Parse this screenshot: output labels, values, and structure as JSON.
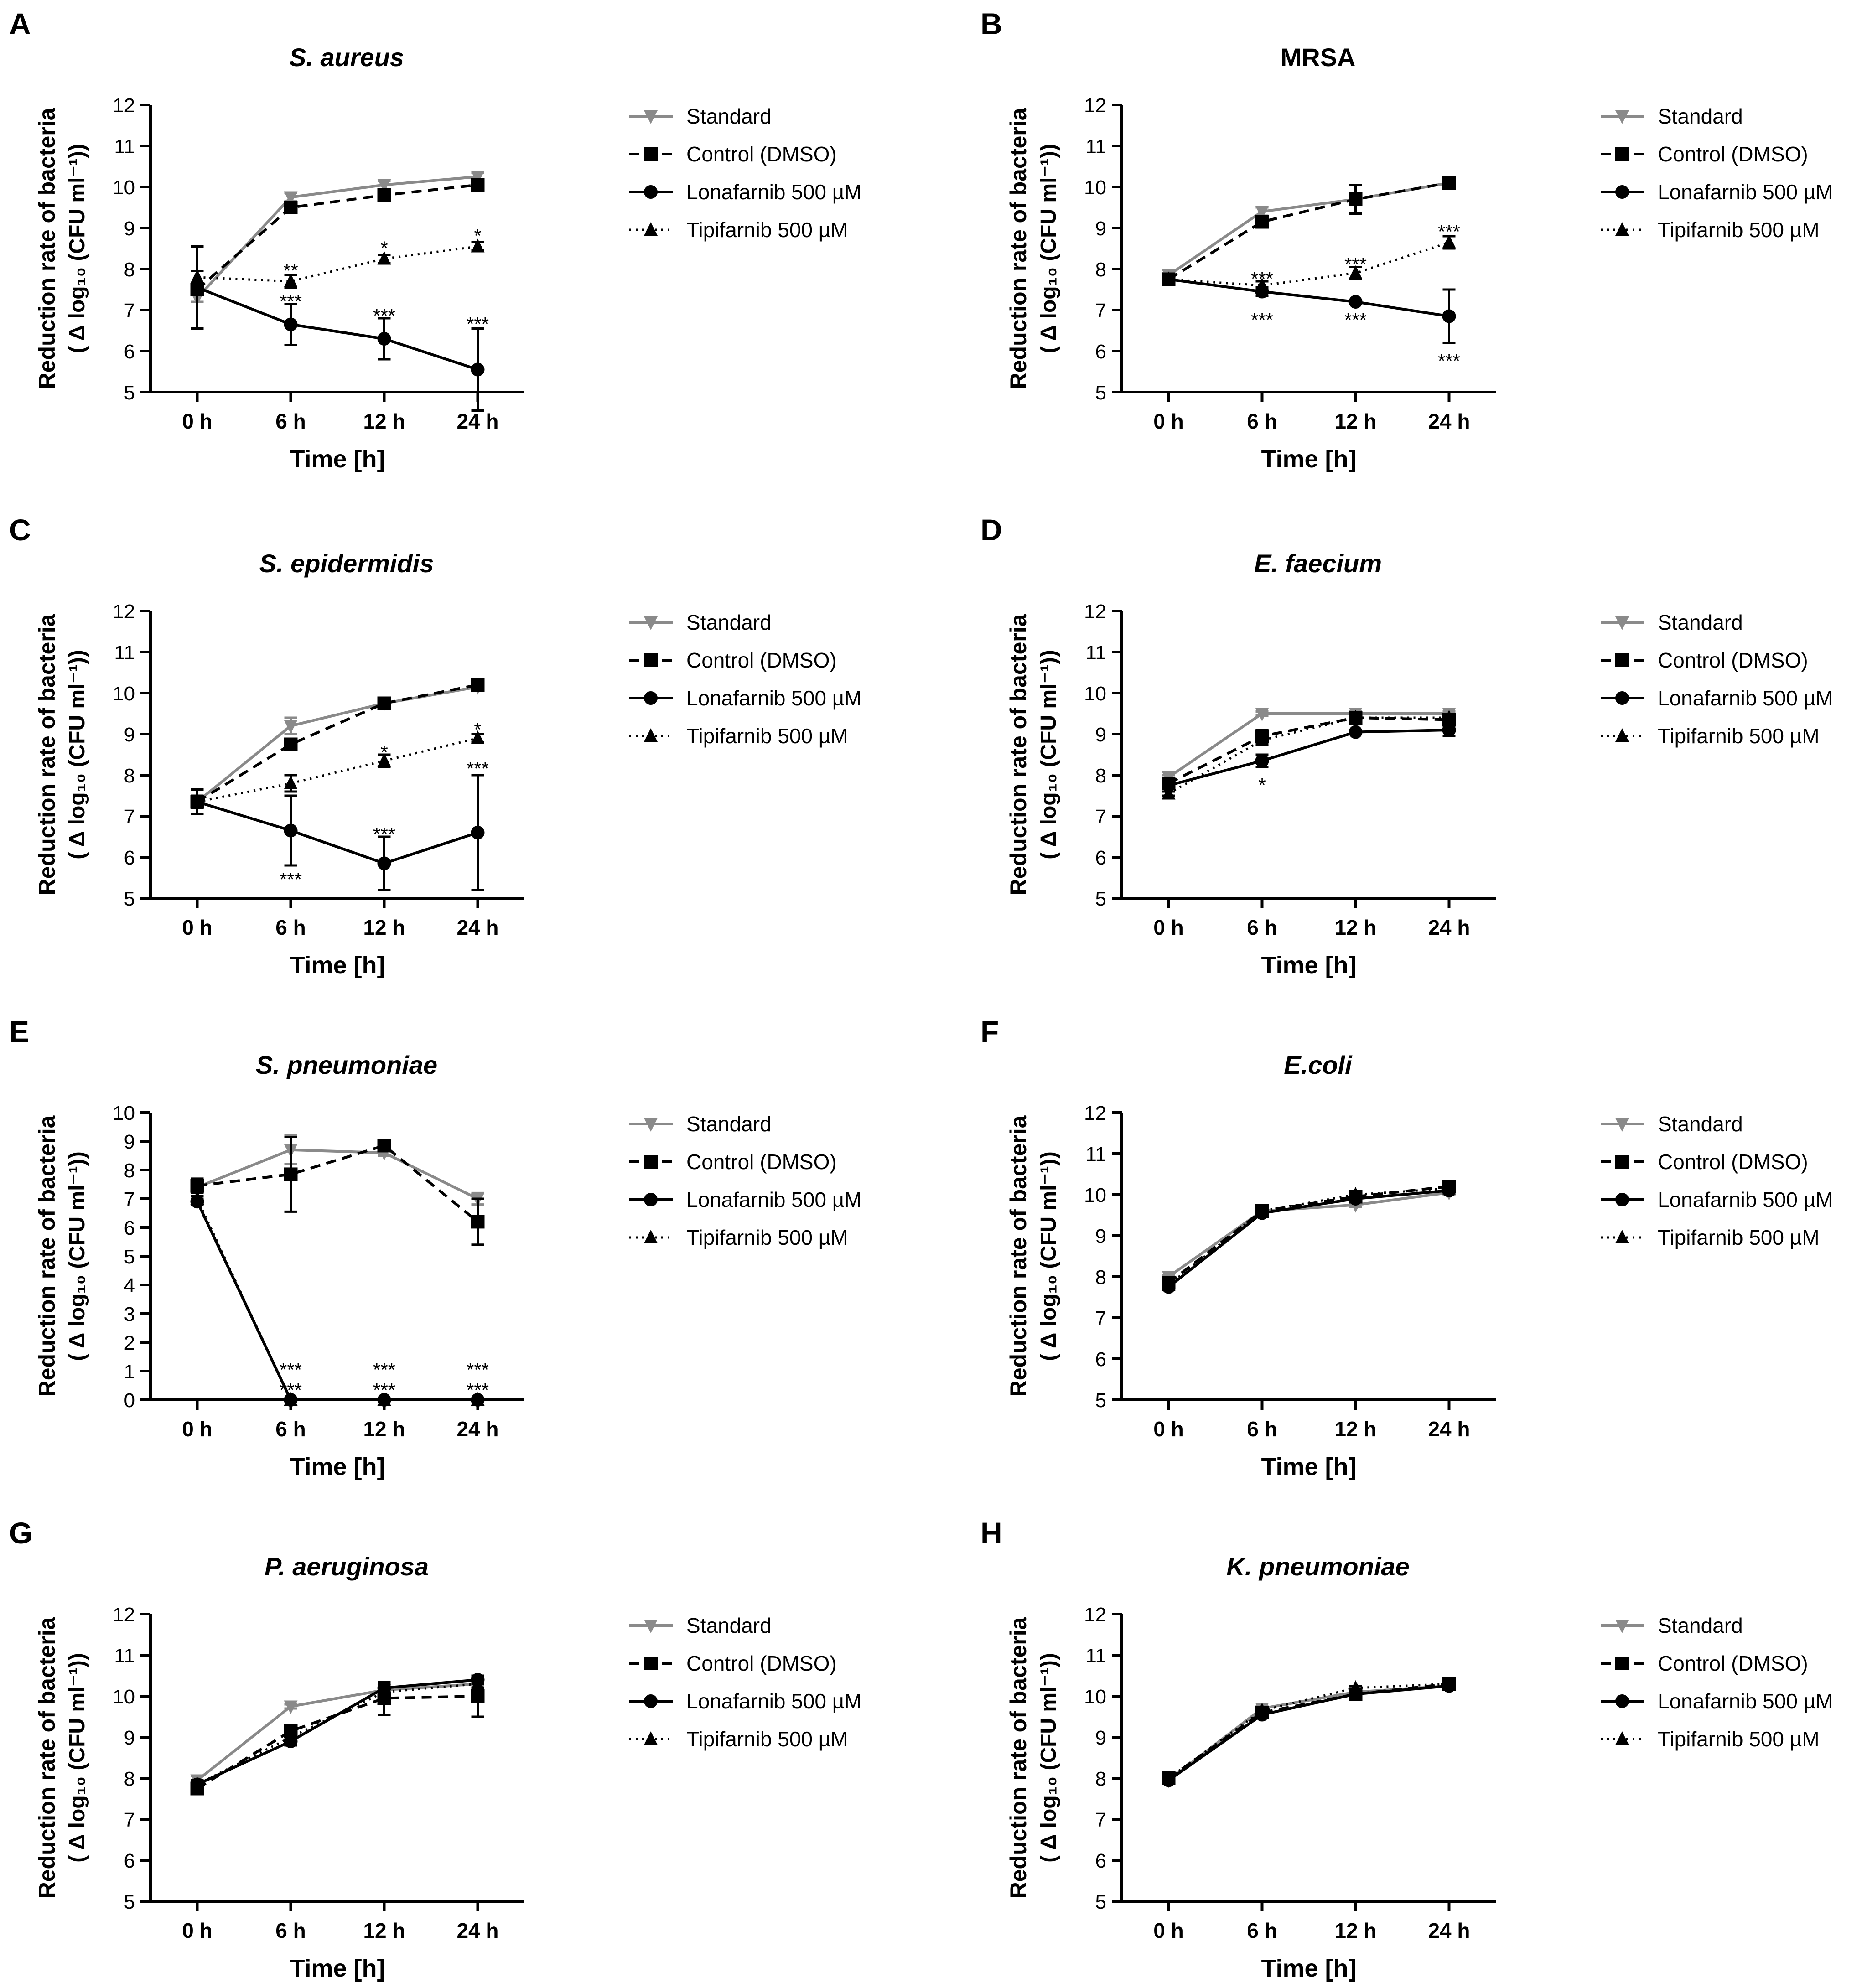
{
  "figure": {
    "x_axis_label": "Time [h]",
    "y_axis_label_line1": "Reduction rate of bacteria",
    "y_axis_label_line2": "( Δ log₁₀ (CFU ml⁻¹))",
    "legend": [
      "Standard",
      "Control (DMSO)",
      "Lonafarnib 500 µM",
      "Tipifarnib 500 µM"
    ],
    "colors": {
      "standard": "#8a8a8a",
      "others": "#000000"
    }
  },
  "chart_data": [
    {
      "panel": "A",
      "title": "S. aureus",
      "type": "line",
      "categories": [
        "0 h",
        "6 h",
        "12 h",
        "24 h"
      ],
      "ylim": [
        5,
        12
      ],
      "series": [
        {
          "name": "Standard",
          "values": [
            7.3,
            9.75,
            10.05,
            10.25
          ],
          "err": [
            0.1,
            0.1,
            0.1,
            0.1
          ]
        },
        {
          "name": "Control (DMSO)",
          "values": [
            7.5,
            9.5,
            9.8,
            10.05
          ],
          "err": [
            0.1,
            0.1,
            0.1,
            0.1
          ]
        },
        {
          "name": "Lonafarnib 500 µM",
          "values": [
            7.55,
            6.65,
            6.3,
            5.55
          ],
          "err": [
            1.0,
            0.5,
            0.5,
            1.0
          ]
        },
        {
          "name": "Tipifarnib 500 µM",
          "values": [
            7.8,
            7.7,
            8.25,
            8.55
          ],
          "err": [
            0.15,
            0.15,
            0.1,
            0.1
          ]
        }
      ],
      "annotations": [
        {
          "x": "6 h",
          "y": 8.0,
          "text": "**"
        },
        {
          "x": "12 h",
          "y": 8.55,
          "text": "*"
        },
        {
          "x": "24 h",
          "y": 8.85,
          "text": "*"
        },
        {
          "x": "6 h",
          "y": 7.25,
          "text": "***"
        },
        {
          "x": "12 h",
          "y": 6.9,
          "text": "***"
        },
        {
          "x": "24 h",
          "y": 6.7,
          "text": "***"
        }
      ]
    },
    {
      "panel": "B",
      "title": "MRSA",
      "type": "line",
      "categories": [
        "0 h",
        "6 h",
        "12 h",
        "24 h"
      ],
      "ylim": [
        5,
        12
      ],
      "series": [
        {
          "name": "Standard",
          "values": [
            7.85,
            9.4,
            9.7,
            10.1
          ],
          "err": [
            0.05,
            0.1,
            0.1,
            0.05
          ]
        },
        {
          "name": "Control (DMSO)",
          "values": [
            7.75,
            9.15,
            9.7,
            10.1
          ],
          "err": [
            0.05,
            0.1,
            0.35,
            0.05
          ]
        },
        {
          "name": "Lonafarnib 500 µM",
          "values": [
            7.75,
            7.45,
            7.2,
            6.85
          ],
          "err": [
            0.05,
            0.1,
            0.05,
            0.65
          ]
        },
        {
          "name": "Tipifarnib 500 µM",
          "values": [
            7.75,
            7.6,
            7.9,
            8.65
          ],
          "err": [
            0.05,
            0.1,
            0.15,
            0.15
          ]
        }
      ],
      "annotations": [
        {
          "x": "6 h",
          "y": 7.8,
          "text": "***"
        },
        {
          "x": "12 h",
          "y": 8.15,
          "text": "***"
        },
        {
          "x": "24 h",
          "y": 8.95,
          "text": "***"
        },
        {
          "x": "6 h",
          "y": 6.8,
          "text": "***"
        },
        {
          "x": "12 h",
          "y": 6.8,
          "text": "***"
        },
        {
          "x": "24 h",
          "y": 5.8,
          "text": "***"
        }
      ]
    },
    {
      "panel": "C",
      "title": "S. epidermidis",
      "type": "line",
      "categories": [
        "0 h",
        "6 h",
        "12 h",
        "24 h"
      ],
      "ylim": [
        5,
        12
      ],
      "series": [
        {
          "name": "Standard",
          "values": [
            7.35,
            9.2,
            9.75,
            10.15
          ],
          "err": [
            0.15,
            0.2,
            0.05,
            0.05
          ]
        },
        {
          "name": "Control (DMSO)",
          "values": [
            7.35,
            8.75,
            9.75,
            10.2
          ],
          "err": [
            0.15,
            0.1,
            0.05,
            0.05
          ]
        },
        {
          "name": "Lonafarnib 500 µM",
          "values": [
            7.35,
            6.65,
            5.85,
            6.6
          ],
          "err": [
            0.3,
            0.85,
            0.65,
            1.4
          ]
        },
        {
          "name": "Tipifarnib 500 µM",
          "values": [
            7.35,
            7.8,
            8.35,
            8.9
          ],
          "err": [
            0.15,
            0.2,
            0.15,
            0.1
          ]
        }
      ],
      "annotations": [
        {
          "x": "12 h",
          "y": 8.6,
          "text": "*"
        },
        {
          "x": "24 h",
          "y": 9.15,
          "text": "*"
        },
        {
          "x": "24 h",
          "y": 8.2,
          "text": "***"
        },
        {
          "x": "12 h",
          "y": 6.6,
          "text": "***"
        },
        {
          "x": "6 h",
          "y": 5.5,
          "text": "***"
        }
      ]
    },
    {
      "panel": "D",
      "title": "E. faecium",
      "type": "line",
      "categories": [
        "0 h",
        "6 h",
        "12 h",
        "24 h"
      ],
      "ylim": [
        5,
        12
      ],
      "series": [
        {
          "name": "Standard",
          "values": [
            7.95,
            9.5,
            9.5,
            9.5
          ],
          "err": [
            0.05,
            0.05,
            0.05,
            0.05
          ]
        },
        {
          "name": "Control (DMSO)",
          "values": [
            7.8,
            8.95,
            9.4,
            9.35
          ],
          "err": [
            0.05,
            0.15,
            0.05,
            0.1
          ]
        },
        {
          "name": "Lonafarnib 500 µM",
          "values": [
            7.75,
            8.35,
            9.05,
            9.1
          ],
          "err": [
            0.05,
            0.15,
            0.05,
            0.15
          ]
        },
        {
          "name": "Tipifarnib 500 µM",
          "values": [
            7.55,
            8.85,
            9.4,
            9.4
          ],
          "err": [
            0.05,
            0.1,
            0.05,
            0.05
          ]
        }
      ],
      "annotations": [
        {
          "x": "6 h",
          "y": 7.8,
          "text": "*"
        }
      ]
    },
    {
      "panel": "E",
      "title": "S. pneumoniae",
      "type": "line",
      "categories": [
        "0 h",
        "6 h",
        "12 h",
        "24 h"
      ],
      "ylim": [
        0,
        10
      ],
      "series": [
        {
          "name": "Standard",
          "values": [
            7.4,
            8.7,
            8.6,
            7.0
          ],
          "err": [
            0.2,
            0.5,
            0.1,
            0.2
          ]
        },
        {
          "name": "Control (DMSO)",
          "values": [
            7.45,
            7.85,
            8.85,
            6.2
          ],
          "err": [
            0.25,
            1.3,
            0.1,
            0.8
          ]
        },
        {
          "name": "Lonafarnib 500 µM",
          "values": [
            6.9,
            0,
            0,
            0
          ],
          "err": [
            0.1,
            0,
            0,
            0
          ]
        },
        {
          "name": "Tipifarnib 500 µM",
          "values": [
            7.0,
            0,
            0,
            0
          ],
          "err": [
            0.1,
            0,
            0,
            0
          ]
        }
      ],
      "annotations": [
        {
          "x": "6 h",
          "y": 1.1,
          "text": "***"
        },
        {
          "x": "12 h",
          "y": 1.1,
          "text": "***"
        },
        {
          "x": "24 h",
          "y": 1.1,
          "text": "***"
        },
        {
          "x": "6 h",
          "y": 0.4,
          "text": "***"
        },
        {
          "x": "12 h",
          "y": 0.4,
          "text": "***"
        },
        {
          "x": "24 h",
          "y": 0.4,
          "text": "***"
        }
      ]
    },
    {
      "panel": "F",
      "title": "E.coli",
      "type": "line",
      "categories": [
        "0 h",
        "6 h",
        "12 h",
        "24 h"
      ],
      "ylim": [
        5,
        12
      ],
      "series": [
        {
          "name": "Standard",
          "values": [
            8.0,
            9.6,
            9.75,
            10.05
          ],
          "err": [
            0.05,
            0.05,
            0.05,
            0.05
          ]
        },
        {
          "name": "Control (DMSO)",
          "values": [
            7.85,
            9.6,
            9.95,
            10.2
          ],
          "err": [
            0.05,
            0.05,
            0.05,
            0.05
          ]
        },
        {
          "name": "Lonafarnib 500 µM",
          "values": [
            7.75,
            9.55,
            9.9,
            10.1
          ],
          "err": [
            0.05,
            0.05,
            0.05,
            0.05
          ]
        },
        {
          "name": "Tipifarnib 500 µM",
          "values": [
            7.8,
            9.6,
            10.0,
            10.15
          ],
          "err": [
            0.05,
            0.05,
            0.05,
            0.05
          ]
        }
      ],
      "annotations": []
    },
    {
      "panel": "G",
      "title": "P. aeruginosa",
      "type": "line",
      "categories": [
        "0 h",
        "6 h",
        "12 h",
        "24 h"
      ],
      "ylim": [
        5,
        12
      ],
      "series": [
        {
          "name": "Standard",
          "values": [
            7.95,
            9.75,
            10.15,
            10.3
          ],
          "err": [
            0.1,
            0.05,
            0.1,
            0.05
          ]
        },
        {
          "name": "Control (DMSO)",
          "values": [
            7.75,
            9.15,
            9.95,
            10.0
          ],
          "err": [
            0.1,
            0.1,
            0.4,
            0.5
          ]
        },
        {
          "name": "Lonafarnib 500 µM",
          "values": [
            7.85,
            8.9,
            10.2,
            10.4
          ],
          "err": [
            0.1,
            0.1,
            0.1,
            0.1
          ]
        },
        {
          "name": "Tipifarnib 500 µM",
          "values": [
            7.85,
            9.0,
            10.1,
            10.3
          ],
          "err": [
            0.1,
            0.1,
            0.1,
            0.1
          ]
        }
      ],
      "annotations": []
    },
    {
      "panel": "H",
      "title": "K. pneumoniae",
      "type": "line",
      "categories": [
        "0 h",
        "6 h",
        "12 h",
        "24 h"
      ],
      "ylim": [
        5,
        12
      ],
      "series": [
        {
          "name": "Standard",
          "values": [
            7.95,
            9.7,
            10.1,
            10.25
          ],
          "err": [
            0.05,
            0.05,
            0.05,
            0.05
          ]
        },
        {
          "name": "Control (DMSO)",
          "values": [
            8.0,
            9.6,
            10.05,
            10.3
          ],
          "err": [
            0.05,
            0.05,
            0.05,
            0.05
          ]
        },
        {
          "name": "Lonafarnib 500 µM",
          "values": [
            7.95,
            9.55,
            10.05,
            10.25
          ],
          "err": [
            0.05,
            0.05,
            0.05,
            0.05
          ]
        },
        {
          "name": "Tipifarnib 500 µM",
          "values": [
            8.0,
            9.65,
            10.2,
            10.3
          ],
          "err": [
            0.05,
            0.05,
            0.05,
            0.05
          ]
        }
      ],
      "annotations": []
    }
  ]
}
